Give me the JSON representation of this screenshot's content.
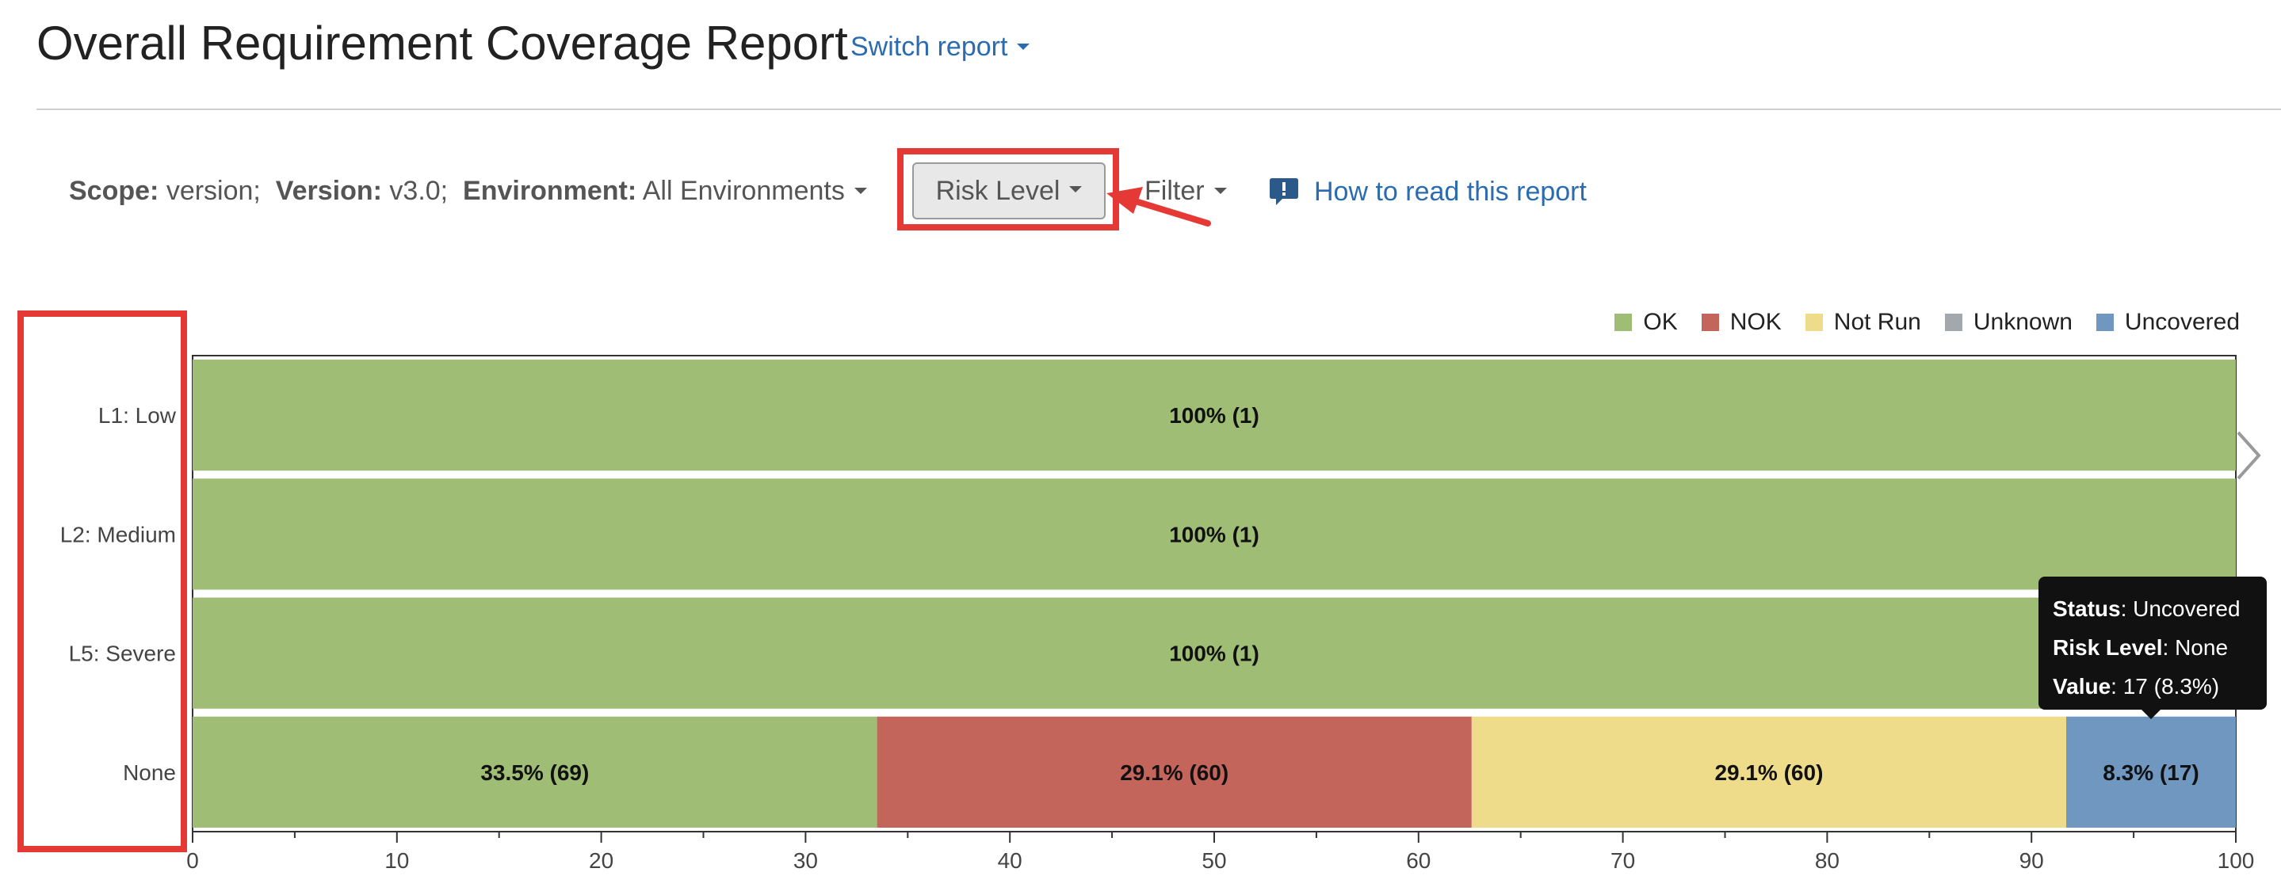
{
  "header": {
    "title": "Overall Requirement Coverage Report",
    "switch_report": "Switch report"
  },
  "scope_bar": {
    "scope_label": "Scope:",
    "scope_value": "version;",
    "version_label": "Version:",
    "version_value": "v3.0;",
    "environment_label": "Environment:",
    "environment_value": "All Environments",
    "group_by_button": "Risk Level",
    "filter": "Filter",
    "help_link": "How to read this report"
  },
  "colors": {
    "ok": "#9fbd74",
    "nok": "#c4655b",
    "not_run": "#eedc8a",
    "unknown": "#a3a8ad",
    "uncovered": "#7097c0",
    "highlight": "#e53935",
    "link": "#2b6cb0"
  },
  "legend": [
    {
      "label": "OK",
      "color": "#9fbd74"
    },
    {
      "label": "NOK",
      "color": "#c4655b"
    },
    {
      "label": "Not Run",
      "color": "#eedc8a"
    },
    {
      "label": "Unknown",
      "color": "#a3a8ad"
    },
    {
      "label": "Uncovered",
      "color": "#7097c0"
    }
  ],
  "chart_data": {
    "type": "bar",
    "orientation": "horizontal",
    "stacked": true,
    "categories": [
      "L1: Low",
      "L2: Medium",
      "L5: Severe",
      "None"
    ],
    "series": [
      {
        "name": "OK",
        "color": "#9fbd74",
        "values": [
          100,
          100,
          100,
          33.5
        ],
        "labels": [
          "100% (1)",
          "100% (1)",
          "100% (1)",
          "33.5% (69)"
        ]
      },
      {
        "name": "NOK",
        "color": "#c4655b",
        "values": [
          0,
          0,
          0,
          29.1
        ],
        "labels": [
          "",
          "",
          "",
          "29.1% (60)"
        ]
      },
      {
        "name": "Not Run",
        "color": "#eedc8a",
        "values": [
          0,
          0,
          0,
          29.1
        ],
        "labels": [
          "",
          "",
          "",
          "29.1% (60)"
        ]
      },
      {
        "name": "Unknown",
        "color": "#a3a8ad",
        "values": [
          0,
          0,
          0,
          0
        ],
        "labels": [
          "",
          "",
          "",
          ""
        ]
      },
      {
        "name": "Uncovered",
        "color": "#7097c0",
        "values": [
          0,
          0,
          0,
          8.3
        ],
        "labels": [
          "",
          "",
          "",
          "8.3% (17)"
        ]
      }
    ],
    "xlim": [
      0,
      100
    ],
    "xticks": [
      0,
      10,
      20,
      30,
      40,
      50,
      60,
      70,
      80,
      90,
      100
    ],
    "grid": false,
    "legend_position": "top-right"
  },
  "tooltip": {
    "status_label": "Status",
    "status_value": ": Uncovered",
    "risk_label": "Risk Level",
    "risk_value": ": None",
    "value_label": "Value",
    "value_value": ": 17 (8.3%)"
  }
}
